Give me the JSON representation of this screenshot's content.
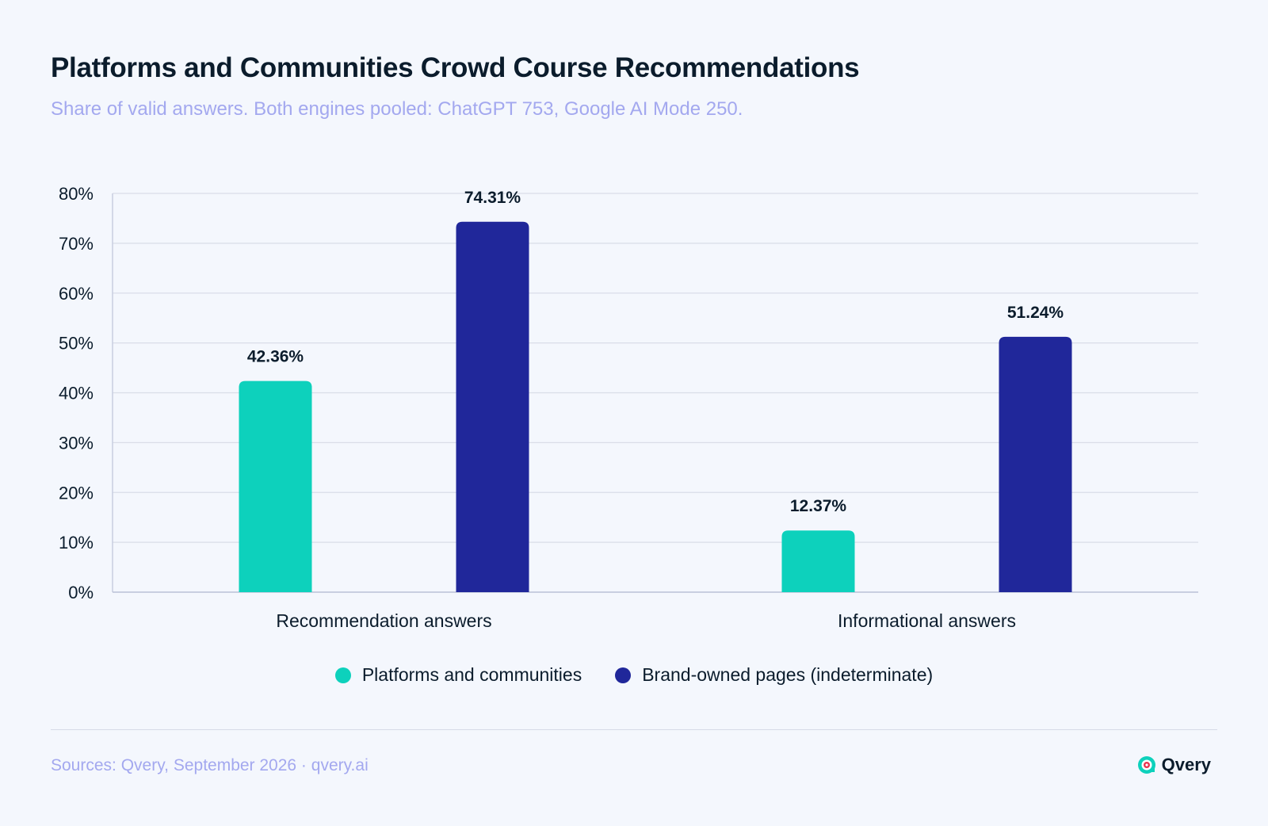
{
  "header": {
    "title": "Platforms and Communities Crowd Course Recommendations",
    "subtitle": "Share of valid answers. Both engines pooled: ChatGPT 753, Google AI Mode 250."
  },
  "chart_data": {
    "type": "bar",
    "categories": [
      "Recommendation answers",
      "Informational answers"
    ],
    "series": [
      {
        "name": "Platforms and communities",
        "values": [
          42.36,
          12.37
        ],
        "color": "#0dd1bc"
      },
      {
        "name": "Brand-owned pages (indeterminate)",
        "values": [
          74.31,
          51.24
        ],
        "color": "#20279a"
      }
    ],
    "data_labels": [
      [
        "42.36%",
        "12.37%"
      ],
      [
        "74.31%",
        "51.24%"
      ]
    ],
    "ylim": [
      0,
      80
    ],
    "yticks": [
      0,
      10,
      20,
      30,
      40,
      50,
      60,
      70,
      80
    ],
    "ytick_labels": [
      "0%",
      "10%",
      "20%",
      "30%",
      "40%",
      "50%",
      "60%",
      "70%",
      "80%"
    ],
    "grid": true,
    "legend_position": "bottom-center"
  },
  "footer": {
    "source": "Sources: Qvery, September 2026 · qvery.ai",
    "brand_name": "Qvery"
  },
  "colors": {
    "background": "#f4f7fd",
    "accent_teal": "#0dd1bc",
    "accent_navy": "#20279a",
    "muted_text": "#a3a8ef",
    "gridline": "#d9dde8"
  },
  "icons": {
    "brand_logo": "qvery-logo-icon"
  }
}
